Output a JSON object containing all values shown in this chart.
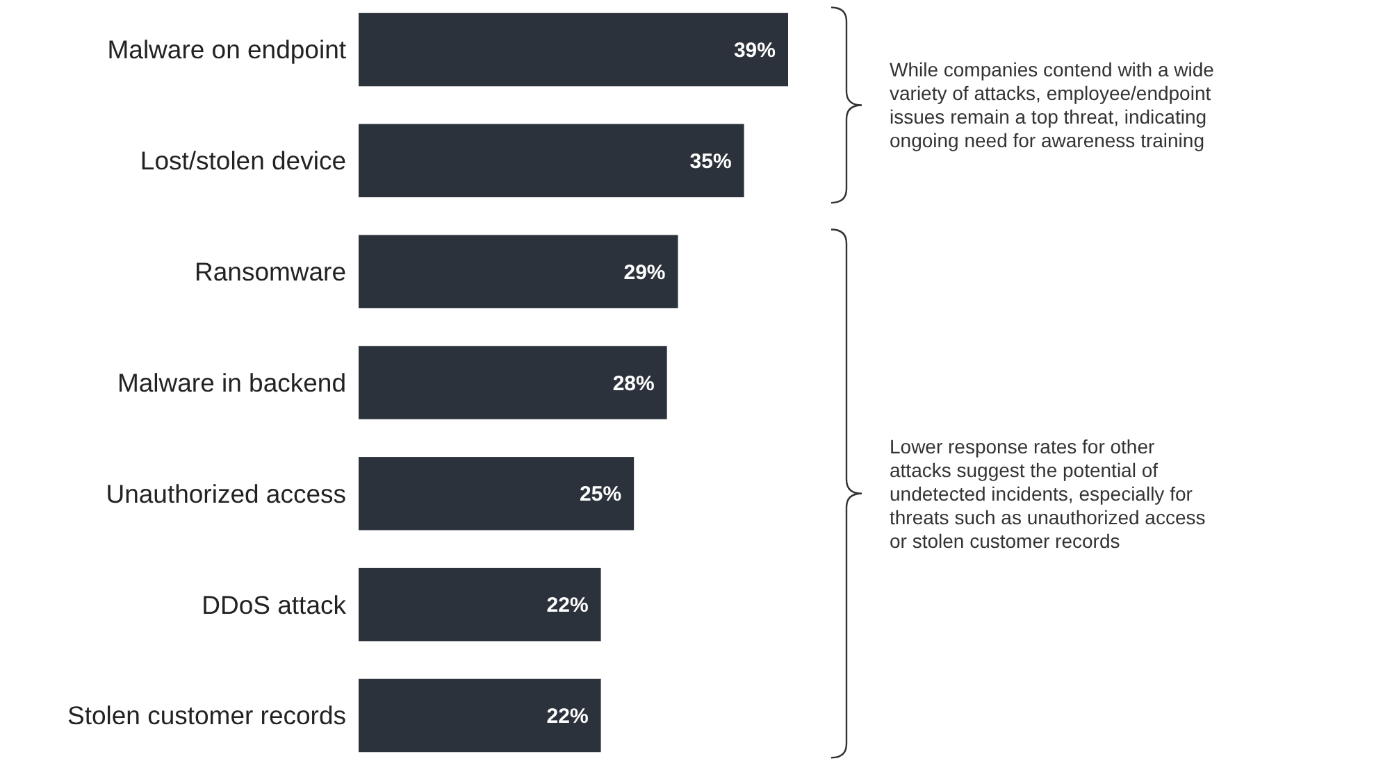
{
  "chart_data": {
    "type": "bar",
    "orientation": "horizontal",
    "categories": [
      "Malware on endpoint",
      "Lost/stolen device",
      "Ransomware",
      "Malware in backend",
      "Unauthorized access",
      "DDoS attack",
      "Stolen customer records"
    ],
    "values": [
      39,
      35,
      29,
      28,
      25,
      22,
      22
    ],
    "value_labels": [
      "39%",
      "35%",
      "29%",
      "28%",
      "25%",
      "22%",
      "22%"
    ],
    "color": "#2b323b",
    "annotations": [
      "While companies contend with a wide variety of attacks, employee/endpoint issues remain a top threat, indicating ongoing need for awareness training",
      "Lower response rates for other attacks suggest the potential of undetected incidents, especially for threats such as unauthorized access or stolen customer records"
    ]
  }
}
